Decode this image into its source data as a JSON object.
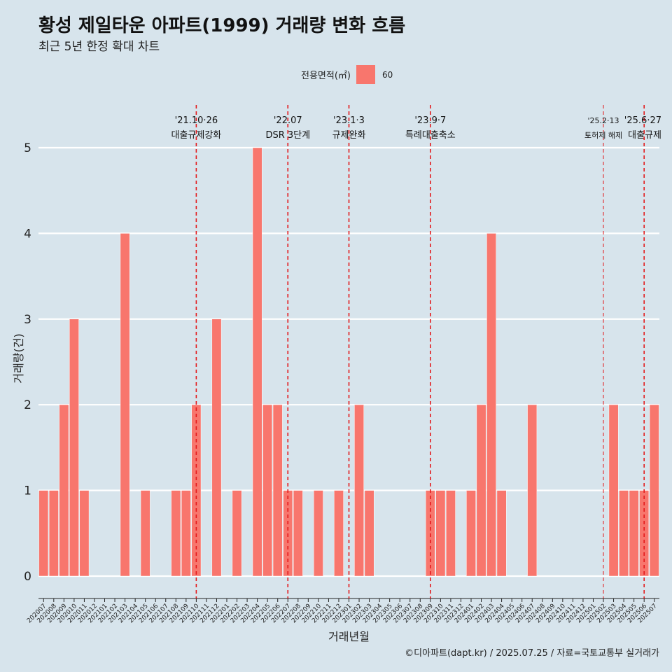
{
  "title": "황성 제일타운 아파트(1999) 거래량 변화 흐름",
  "subtitle": "최근 5년 한정 확대 차트",
  "legend": {
    "title": "전용면적(㎡)",
    "label": "60"
  },
  "caption": "©디아파트(dapt.kr) / 2025.07.25 / 자료=국토교통부 실거래가",
  "colors": {
    "background": "#d7e4ec",
    "bar": "#f8766d",
    "event_line": "#e31a1c",
    "grid": "#ffffff"
  },
  "chart_data": {
    "type": "bar",
    "xlabel": "거래년월",
    "ylabel": "거래량(건)",
    "ylim": [
      0,
      5
    ],
    "yticks": [
      0,
      1,
      2,
      3,
      4,
      5
    ],
    "grid": true,
    "legend_position": "top",
    "categories": [
      "202007",
      "202008",
      "202009",
      "202010",
      "202011",
      "202012",
      "202101",
      "202102",
      "202103",
      "202104",
      "202105",
      "202106",
      "202107",
      "202108",
      "202109",
      "202110",
      "202111",
      "202112",
      "202201",
      "202202",
      "202203",
      "202204",
      "202205",
      "202206",
      "202207",
      "202208",
      "202209",
      "202210",
      "202211",
      "202212",
      "202301",
      "202302",
      "202303",
      "202304",
      "202305",
      "202306",
      "202307",
      "202308",
      "202309",
      "202310",
      "202311",
      "202312",
      "202401",
      "202402",
      "202403",
      "202404",
      "202405",
      "202406",
      "202407",
      "202408",
      "202409",
      "202410",
      "202411",
      "202412",
      "202501",
      "202502",
      "202503",
      "202504",
      "202505",
      "202506",
      "202507"
    ],
    "series": [
      {
        "name": "60",
        "values": [
          1,
          1,
          2,
          3,
          1,
          0,
          0,
          0,
          4,
          0,
          1,
          0,
          0,
          1,
          1,
          2,
          0,
          3,
          0,
          1,
          0,
          5,
          2,
          2,
          1,
          1,
          0,
          1,
          0,
          1,
          0,
          2,
          1,
          0,
          0,
          0,
          0,
          0,
          1,
          1,
          1,
          0,
          1,
          2,
          4,
          1,
          0,
          0,
          2,
          0,
          0,
          0,
          0,
          0,
          0,
          0,
          2,
          1,
          1,
          1,
          2
        ]
      }
    ],
    "annotations": [
      {
        "date": "202110",
        "line1": "'21.10·26",
        "line2": "대출규제강화"
      },
      {
        "date": "202207",
        "line1": "'22.07",
        "line2": "DSR 3단계"
      },
      {
        "date": "202301",
        "line1": "'23.1·3",
        "line2": "규제완화"
      },
      {
        "date": "202309",
        "line1": "'23.9·7",
        "line2": "특례대출축소"
      },
      {
        "date": "202502",
        "line1": "'25.2·13",
        "line2": "토허제 해제"
      },
      {
        "date": "202506",
        "line1": "'25.6·27",
        "line2": "대출규제"
      }
    ]
  }
}
